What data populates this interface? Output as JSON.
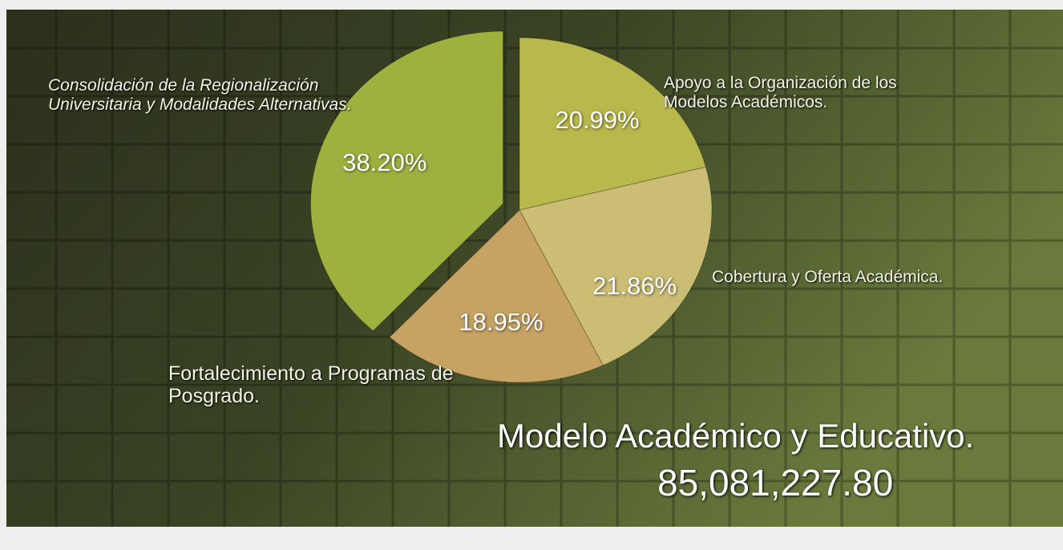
{
  "chart_data": {
    "type": "pie",
    "title": "Modelo Académico y Educativo.",
    "subtitle": "85,081,227.80",
    "categories": [
      "Apoyo a la Organización de los Modelos Académicos.",
      "Cobertura y Oferta Académica.",
      "Fortalecimiento a Programas de Posgrado.",
      "Consolidación de la Regionalización Universitaria y Modalidades Alternativas."
    ],
    "values": [
      20.99,
      21.86,
      18.95,
      38.2
    ],
    "value_labels": [
      "20.99%",
      "21.86%",
      "18.95%",
      "38.20%"
    ],
    "colors": [
      "#b9b84c",
      "#cbbd74",
      "#c6a263",
      "#a0b03f"
    ]
  }
}
